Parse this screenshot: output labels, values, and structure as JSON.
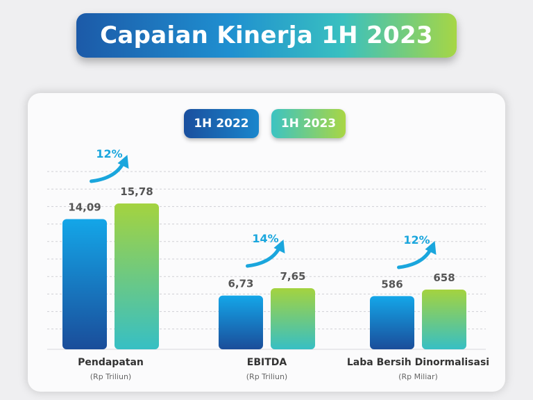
{
  "title": "Capaian Kinerja 1H 2023",
  "legend": [
    {
      "label": "1H 2022",
      "color": "#1a7fc6"
    },
    {
      "label": "1H 2023",
      "color": "#8fd14f"
    }
  ],
  "colors": {
    "growth_text": "#1aa6dd",
    "value_text": "#555555",
    "label_text": "#333333",
    "unit_text": "#666666"
  },
  "chart_data": {
    "type": "bar",
    "groups": [
      {
        "label": "Pendapatan",
        "unit": "(Rp Triliun)",
        "values": [
          14.09,
          15.78
        ],
        "value_labels": [
          "14,09",
          "15,78"
        ],
        "growth": "12%"
      },
      {
        "label": "EBITDA",
        "unit": "(Rp Triliun)",
        "values": [
          6.73,
          7.65
        ],
        "value_labels": [
          "6,73",
          "7,65"
        ],
        "growth": "14%"
      },
      {
        "label": "Laba Bersih Dinormalisasi",
        "unit": "(Rp Miliar)",
        "values": [
          586,
          658
        ],
        "value_labels": [
          "586",
          "658"
        ],
        "growth": "12%"
      }
    ],
    "series": [
      {
        "name": "1H 2022"
      },
      {
        "name": "1H 2023"
      }
    ],
    "grid": true,
    "legend_position": "top-center"
  }
}
